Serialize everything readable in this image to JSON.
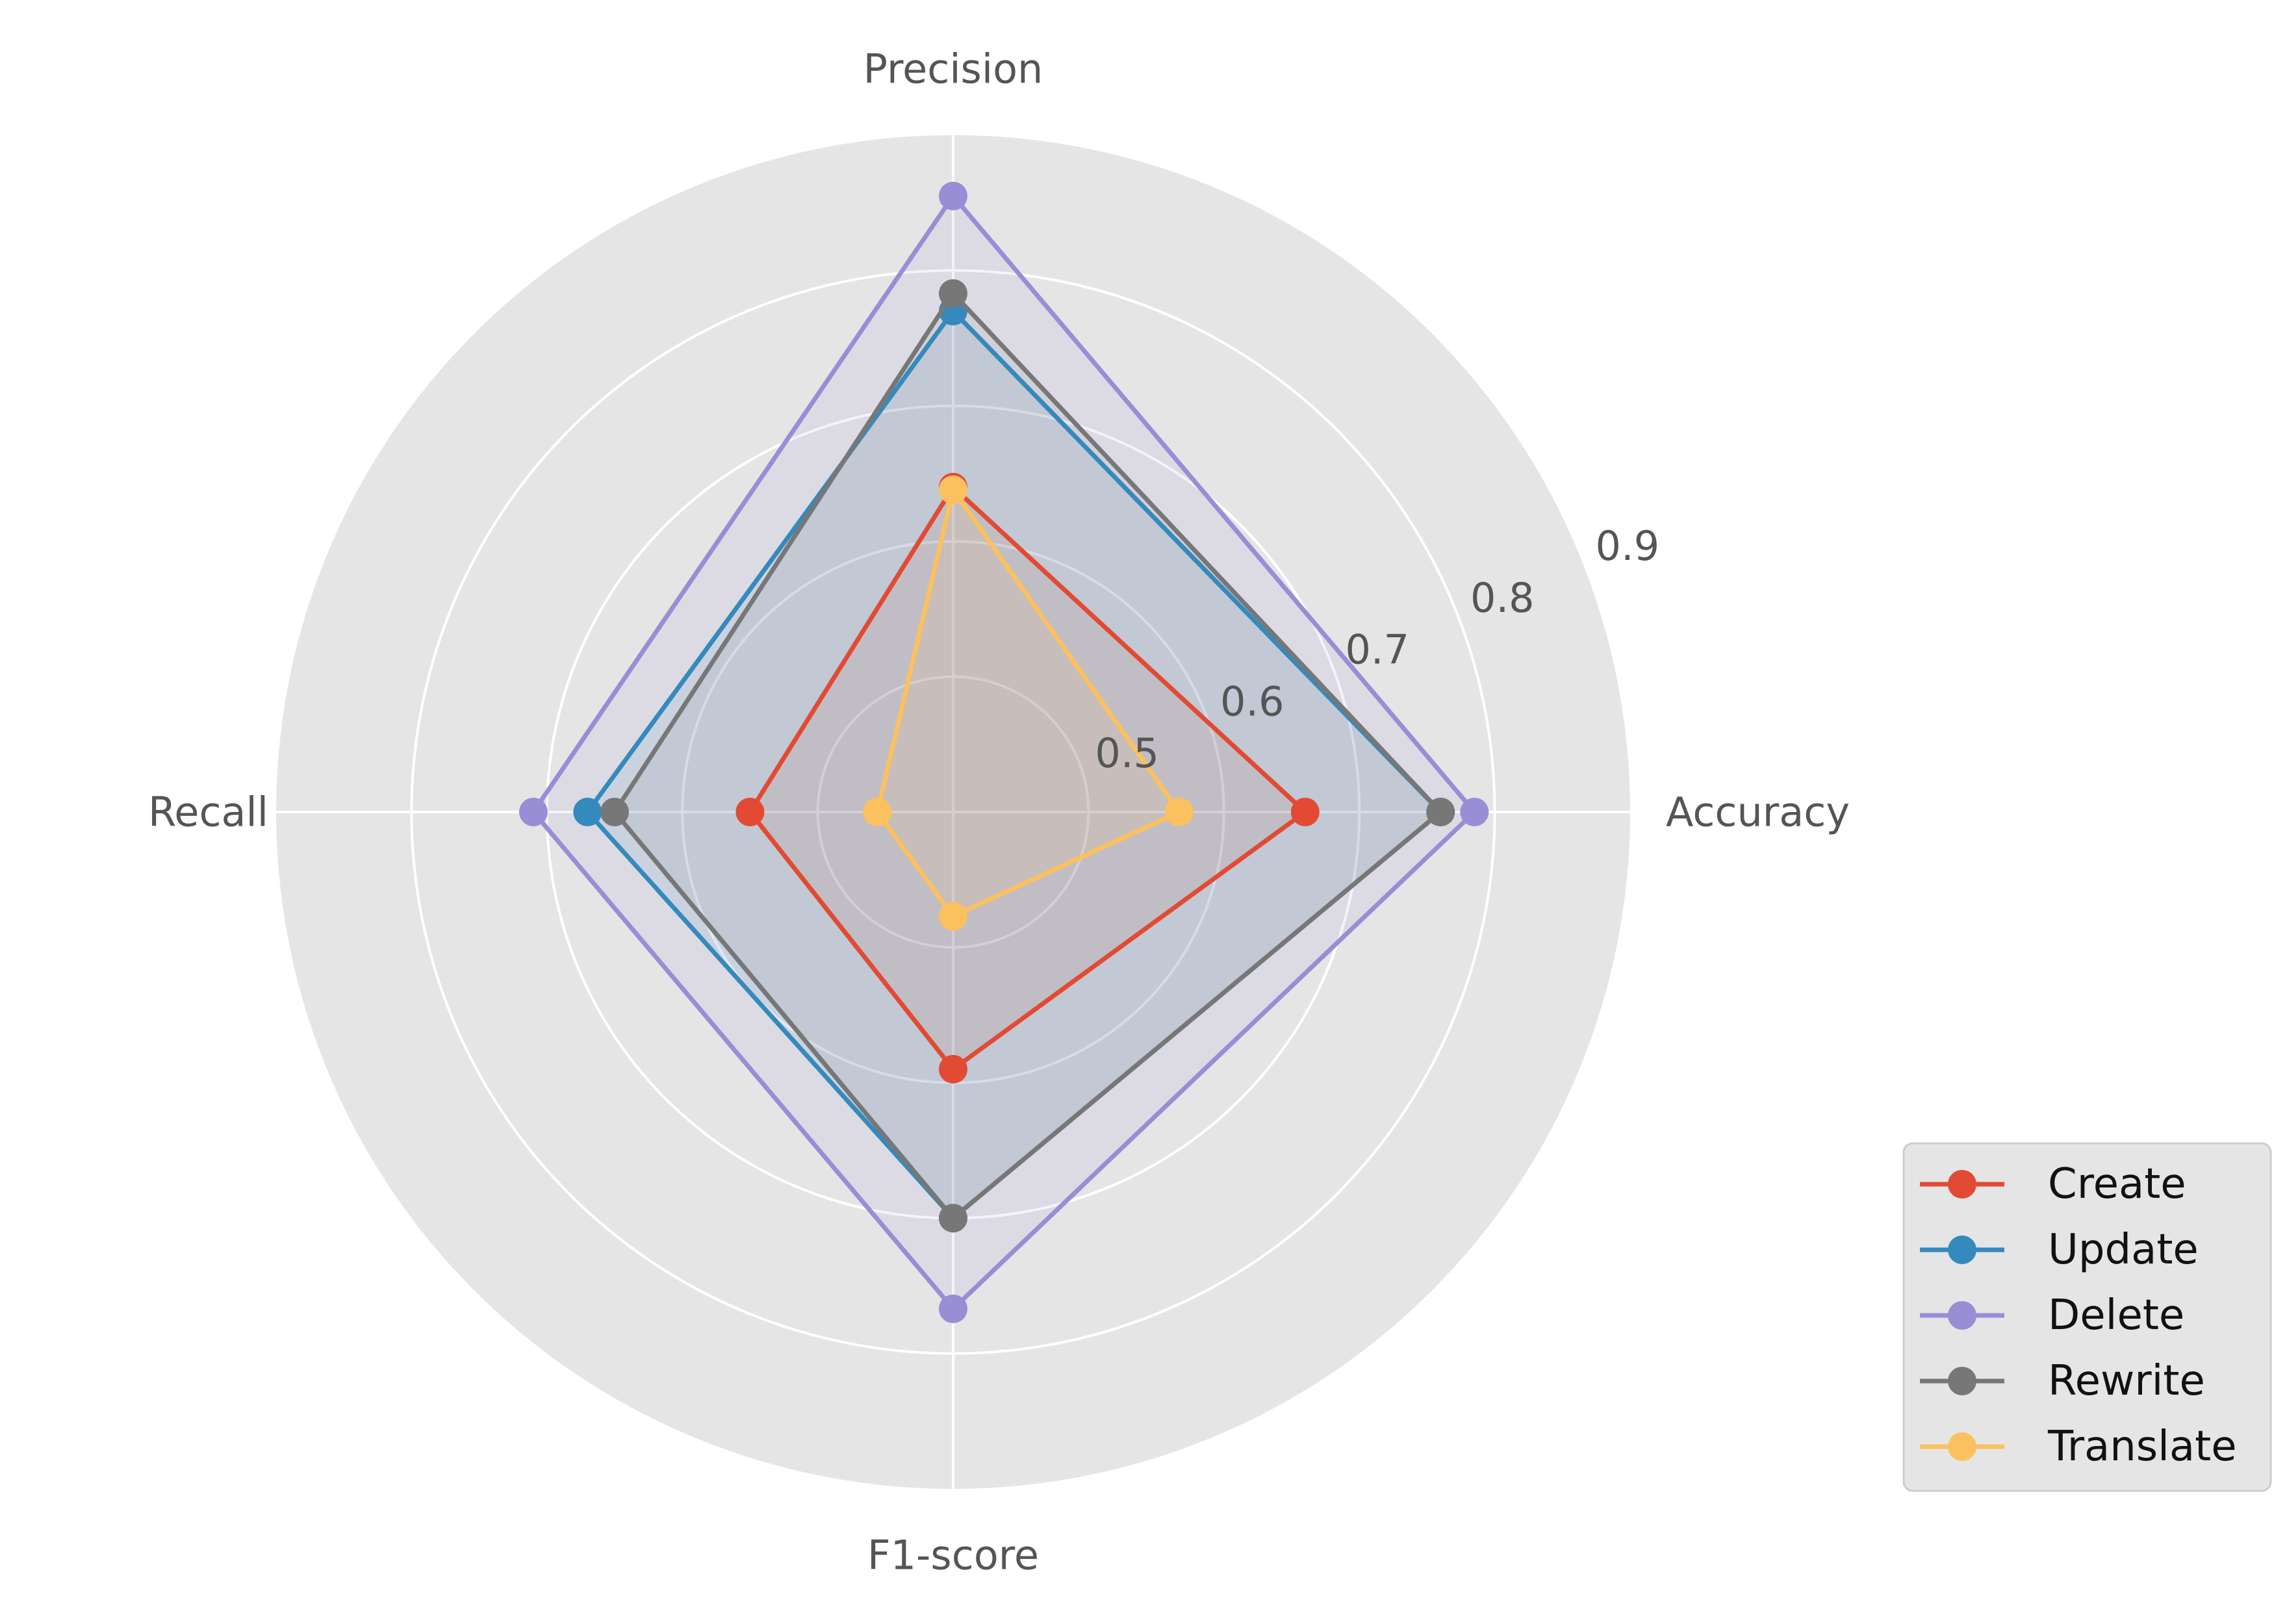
{
  "chart_data": {
    "type": "radar",
    "axes": [
      "Accuracy",
      "Precision",
      "Recall",
      "F1-score"
    ],
    "rlim": [
      0.4,
      0.9
    ],
    "rticks": [
      0.5,
      0.6,
      0.7,
      0.8,
      0.9
    ],
    "rtick_labels": [
      "0.5",
      "0.6",
      "0.7",
      "0.8",
      "0.9"
    ],
    "grid": true,
    "legend_position": "bottom-right",
    "series": [
      {
        "name": "Create",
        "color": "#E24A33",
        "values": [
          0.66,
          0.64,
          0.55,
          0.59
        ]
      },
      {
        "name": "Update",
        "color": "#348ABD",
        "values": [
          0.76,
          0.77,
          0.67,
          0.7
        ]
      },
      {
        "name": "Delete",
        "color": "#988ED5",
        "values": [
          0.785,
          0.855,
          0.71,
          0.767
        ]
      },
      {
        "name": "Rewrite",
        "color": "#777777",
        "values": [
          0.76,
          0.783,
          0.65,
          0.7
        ]
      },
      {
        "name": "Translate",
        "color": "#FBC15E",
        "values": [
          0.567,
          0.638,
          0.456,
          0.477
        ]
      }
    ]
  }
}
